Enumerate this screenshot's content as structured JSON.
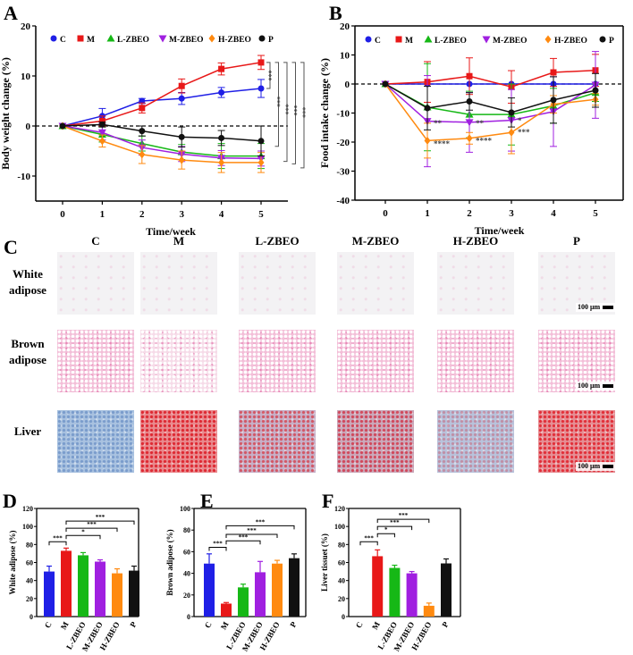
{
  "panel_labels": {
    "a": "A",
    "b": "B",
    "c": "C",
    "d": "D",
    "e": "E",
    "f": "F"
  },
  "colors": {
    "C": "#1f1fe6",
    "M": "#e81818",
    "L-ZBEO": "#16b816",
    "M-ZBEO": "#a020e0",
    "H-ZBEO": "#ff8a10",
    "P": "#111111"
  },
  "histology": {
    "columns": [
      "C",
      "M",
      "L-ZBEO",
      "M-ZBEO",
      "H-ZBEO",
      "P"
    ],
    "rows": [
      {
        "line1": "White",
        "line2": "adipose"
      },
      {
        "line1": "Brown",
        "line2": "adipose"
      },
      {
        "line1": "Liver",
        "line2": ""
      }
    ],
    "scale_bar": "100 μm"
  },
  "chart_data": [
    {
      "id": "A",
      "type": "line",
      "xlabel": "Time/week",
      "ylabel": "Body weight change (%)",
      "x": [
        0,
        1,
        2,
        3,
        4,
        5
      ],
      "xlim": [
        0,
        5
      ],
      "ylim": [
        -15,
        20
      ],
      "yticks": [
        -10,
        0,
        10,
        20
      ],
      "legend": "top",
      "series": [
        {
          "name": "C",
          "marker": "circle",
          "values": [
            0,
            2,
            5,
            5.5,
            6.7,
            7.5
          ],
          "err": [
            0,
            1.5,
            0.5,
            1.2,
            1,
            1.8
          ]
        },
        {
          "name": "M",
          "marker": "square",
          "values": [
            0,
            1,
            3.6,
            8,
            11.4,
            12.7
          ],
          "err": [
            0,
            1,
            1,
            1.4,
            1.2,
            1.4
          ]
        },
        {
          "name": "L-ZBEO",
          "marker": "triangle",
          "values": [
            0,
            -1.7,
            -3.5,
            -5.2,
            -6,
            -6
          ],
          "err": [
            0,
            1.5,
            1.5,
            1.5,
            2.5,
            2.5
          ]
        },
        {
          "name": "M-ZBEO",
          "marker": "triangle-down",
          "values": [
            0,
            -1.3,
            -4.3,
            -5.6,
            -6.4,
            -6.5
          ],
          "err": [
            0,
            1.5,
            1.5,
            1.5,
            1.5,
            1.5
          ]
        },
        {
          "name": "H-ZBEO",
          "marker": "diamond",
          "values": [
            0,
            -3,
            -5.7,
            -6.8,
            -7.3,
            -7.3
          ],
          "err": [
            0,
            1.2,
            1.8,
            1.8,
            2,
            2
          ]
        },
        {
          "name": "P",
          "marker": "circle",
          "values": [
            0,
            0.3,
            -1,
            -2.2,
            -2.4,
            -3
          ],
          "err": [
            0,
            0.5,
            1,
            2,
            1.5,
            3
          ]
        }
      ],
      "brackets": [
        {
          "from": "M",
          "to": "C",
          "label": "***"
        },
        {
          "from": "M",
          "to": "P",
          "label": "***"
        },
        {
          "from": "M",
          "to": "L-ZBEO",
          "label": "***"
        },
        {
          "from": "M",
          "to": "M-ZBEO",
          "label": "***"
        },
        {
          "from": "M",
          "to": "H-ZBEO",
          "label": "***"
        }
      ]
    },
    {
      "id": "B",
      "type": "line",
      "xlabel": "Time/week",
      "ylabel": "Food intake change (%)",
      "x": [
        0,
        1,
        2,
        3,
        4,
        5
      ],
      "xlim": [
        0,
        5
      ],
      "ylim": [
        -40,
        20
      ],
      "yticks": [
        -40,
        -30,
        -20,
        -10,
        0,
        10,
        20
      ],
      "legend": "top",
      "series": [
        {
          "name": "C",
          "marker": "circle",
          "values": [
            0,
            0,
            0,
            0,
            0,
            0
          ],
          "err": [
            0,
            0,
            0,
            0,
            0,
            0
          ]
        },
        {
          "name": "M",
          "marker": "square",
          "values": [
            0,
            0.7,
            2.7,
            -1,
            4,
            4.7
          ],
          "err": [
            0,
            7,
            6.3,
            5.6,
            4.8,
            5.5
          ]
        },
        {
          "name": "L-ZBEO",
          "marker": "triangle",
          "values": [
            0,
            -8,
            -10.5,
            -10.5,
            -7.5,
            -3
          ],
          "err": [
            0,
            15,
            8,
            10.5,
            6,
            3
          ]
        },
        {
          "name": "M-ZBEO",
          "marker": "triangle-down",
          "values": [
            0,
            -12.8,
            -13.2,
            -12.5,
            -9.5,
            -0.3
          ],
          "err": [
            0,
            15.7,
            10.3,
            10.6,
            12,
            11.5
          ]
        },
        {
          "name": "H-ZBEO",
          "marker": "diamond",
          "values": [
            0,
            -19.5,
            -18.7,
            -16.7,
            -7,
            -5.3
          ],
          "err": [
            0,
            6,
            2,
            7.3,
            3,
            2
          ]
        },
        {
          "name": "P",
          "marker": "circle",
          "values": [
            0,
            -8.3,
            -6,
            -9.8,
            -5.5,
            -2.2
          ],
          "err": [
            0,
            7.5,
            3,
            5,
            8,
            5.8
          ]
        }
      ],
      "annotations": [
        {
          "x": 1,
          "y": -14.5,
          "text": "**"
        },
        {
          "x": 1,
          "y": -21.5,
          "text": "****"
        },
        {
          "x": 2,
          "y": -14.5,
          "text": "**"
        },
        {
          "x": 2,
          "y": -20.5,
          "text": "****"
        },
        {
          "x": 3,
          "y": -13.5,
          "text": "*"
        },
        {
          "x": 3,
          "y": -17.5,
          "text": "***"
        }
      ]
    },
    {
      "id": "D",
      "type": "bar",
      "ylabel": "White adipose (%)",
      "ylim": [
        0,
        120
      ],
      "yticks": [
        0,
        20,
        40,
        60,
        80,
        100,
        120
      ],
      "categories": [
        "C",
        "M",
        "L-ZBEO",
        "M-ZBEO",
        "H-ZBEO",
        "P"
      ],
      "values": [
        50,
        73,
        68,
        61,
        48,
        51
      ],
      "err": [
        6,
        3,
        3,
        2,
        5,
        5
      ],
      "brackets": [
        {
          "a": 0,
          "b": 1,
          "y": 83,
          "label": "***"
        },
        {
          "a": 1,
          "b": 3,
          "y": 90,
          "label": "*"
        },
        {
          "a": 1,
          "b": 4,
          "y": 98,
          "label": "***"
        },
        {
          "a": 1,
          "b": 5,
          "y": 106,
          "label": "***"
        }
      ]
    },
    {
      "id": "E",
      "type": "bar",
      "ylabel": "Brown adipose (%)",
      "ylim": [
        0,
        100
      ],
      "yticks": [
        0,
        20,
        40,
        60,
        80,
        100
      ],
      "categories": [
        "C",
        "M",
        "L-ZBEO",
        "M-ZBEO",
        "H-ZBEO",
        "P"
      ],
      "values": [
        49,
        12,
        27,
        41,
        49,
        54
      ],
      "err": [
        9,
        1,
        3,
        10,
        3,
        4
      ],
      "brackets": [
        {
          "a": 0,
          "b": 1,
          "y": 64,
          "label": "***"
        },
        {
          "a": 1,
          "b": 3,
          "y": 70,
          "label": "***"
        },
        {
          "a": 1,
          "b": 4,
          "y": 76,
          "label": "***"
        },
        {
          "a": 1,
          "b": 5,
          "y": 84,
          "label": "***"
        }
      ]
    },
    {
      "id": "F",
      "type": "bar",
      "ylabel": "Liver tissuet (%)",
      "ylim": [
        0,
        120
      ],
      "yticks": [
        0,
        20,
        40,
        60,
        80,
        100,
        120
      ],
      "categories": [
        "C",
        "M",
        "L-ZBEO",
        "M-ZBEO",
        "H-ZBEO",
        "P"
      ],
      "values": [
        0,
        67,
        54,
        48,
        12,
        59
      ],
      "err": [
        0,
        7,
        3,
        2,
        3,
        5
      ],
      "brackets": [
        {
          "a": 0,
          "b": 1,
          "y": 83,
          "label": "***"
        },
        {
          "a": 1,
          "b": 2,
          "y": 92,
          "label": "*"
        },
        {
          "a": 1,
          "b": 3,
          "y": 100,
          "label": "***"
        },
        {
          "a": 1,
          "b": 4,
          "y": 108,
          "label": "***"
        }
      ]
    }
  ]
}
